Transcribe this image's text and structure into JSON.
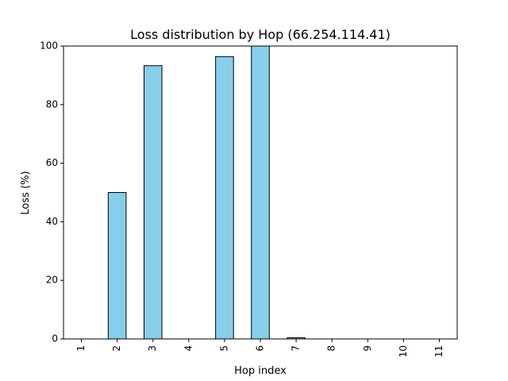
{
  "chart_data": {
    "type": "bar",
    "title": "Loss distribution by Hop (66.254.114.41)",
    "xlabel": "Hop index",
    "ylabel": "Loss (%)",
    "categories": [
      "1",
      "2",
      "3",
      "4",
      "5",
      "6",
      "7",
      "8",
      "9",
      "10",
      "11"
    ],
    "values": [
      0,
      50,
      93.3,
      0,
      96.4,
      100,
      0.4,
      0,
      0,
      0,
      0
    ],
    "ylim": [
      0,
      100
    ],
    "yticks": [
      0,
      20,
      40,
      60,
      80,
      100
    ],
    "bar_color": "#87ceeb",
    "edge_color": "#000000",
    "grid": false,
    "legend": "none"
  }
}
